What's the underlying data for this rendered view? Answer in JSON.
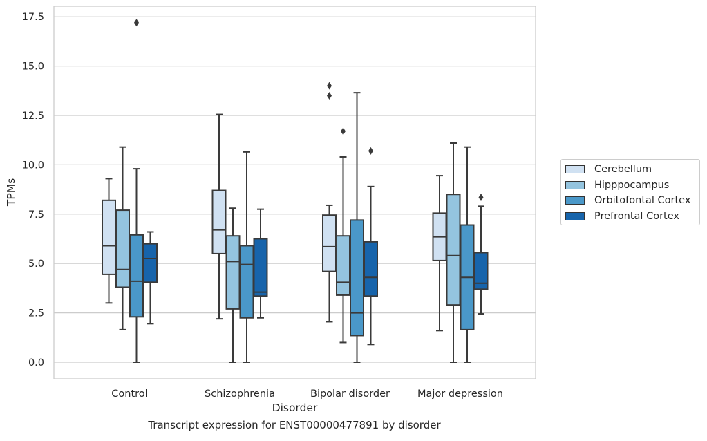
{
  "caption": "Transcript expression for ENST00000477891 by disorder",
  "legend": {
    "items": [
      {
        "label": "Cerebellum",
        "color": "#d0e1f2"
      },
      {
        "label": "Hipppocampus",
        "color": "#94c4df"
      },
      {
        "label": "Orbitofontal Cortex",
        "color": "#4a98c9"
      },
      {
        "label": "Prefrontal Cortex",
        "color": "#1764ab"
      }
    ]
  },
  "chart_data": {
    "type": "box",
    "xlabel": "Disorder",
    "ylabel": "TPMs",
    "ylim": [
      -0.8,
      18.1
    ],
    "yticks": [
      "0.0",
      "2.5",
      "5.0",
      "7.5",
      "10.0",
      "12.5",
      "15.0",
      "17.5"
    ],
    "grid": "horizontal",
    "legend_position": "right",
    "categories": [
      "Control",
      "Schizophrenia",
      "Bipolar disorder",
      "Major depression"
    ],
    "series": [
      {
        "name": "Cerebellum",
        "color": "#d0e1f2",
        "boxes": [
          {
            "min": 3.0,
            "q1": 4.45,
            "median": 5.9,
            "q3": 8.2,
            "max": 9.3,
            "outliers": []
          },
          {
            "min": 2.2,
            "q1": 5.5,
            "median": 6.7,
            "q3": 8.7,
            "max": 12.55,
            "outliers": []
          },
          {
            "min": 2.05,
            "q1": 4.6,
            "median": 5.85,
            "q3": 7.45,
            "max": 7.95,
            "outliers": [
              13.5,
              14.0
            ]
          },
          {
            "min": 1.6,
            "q1": 5.15,
            "median": 6.35,
            "q3": 7.55,
            "max": 9.45,
            "outliers": []
          }
        ]
      },
      {
        "name": "Hipppocampus",
        "color": "#94c4df",
        "boxes": [
          {
            "min": 1.65,
            "q1": 3.8,
            "median": 4.7,
            "q3": 7.7,
            "max": 10.9,
            "outliers": []
          },
          {
            "min": 0.0,
            "q1": 2.7,
            "median": 5.1,
            "q3": 6.4,
            "max": 7.8,
            "outliers": []
          },
          {
            "min": 1.0,
            "q1": 3.4,
            "median": 4.05,
            "q3": 6.4,
            "max": 10.4,
            "outliers": [
              11.7
            ]
          },
          {
            "min": 0.0,
            "q1": 2.9,
            "median": 5.4,
            "q3": 8.5,
            "max": 11.1,
            "outliers": []
          }
        ]
      },
      {
        "name": "Orbitofontal Cortex",
        "color": "#4a98c9",
        "boxes": [
          {
            "min": 0.0,
            "q1": 2.3,
            "median": 4.1,
            "q3": 6.45,
            "max": 9.8,
            "outliers": [
              17.2
            ]
          },
          {
            "min": 0.0,
            "q1": 2.25,
            "median": 4.95,
            "q3": 5.9,
            "max": 10.65,
            "outliers": []
          },
          {
            "min": 0.0,
            "q1": 1.35,
            "median": 2.5,
            "q3": 7.2,
            "max": 13.65,
            "outliers": []
          },
          {
            "min": 0.0,
            "q1": 1.65,
            "median": 4.3,
            "q3": 6.95,
            "max": 10.9,
            "outliers": []
          }
        ]
      },
      {
        "name": "Prefrontal Cortex",
        "color": "#1764ab",
        "boxes": [
          {
            "min": 1.95,
            "q1": 4.05,
            "median": 5.25,
            "q3": 6.0,
            "max": 6.6,
            "outliers": []
          },
          {
            "min": 2.25,
            "q1": 3.35,
            "median": 3.55,
            "q3": 6.25,
            "max": 7.75,
            "outliers": []
          },
          {
            "min": 0.9,
            "q1": 3.35,
            "median": 4.3,
            "q3": 6.1,
            "max": 8.9,
            "outliers": [
              10.7
            ]
          },
          {
            "min": 2.45,
            "q1": 3.7,
            "median": 4.0,
            "q3": 5.55,
            "max": 7.9,
            "outliers": [
              8.35
            ]
          }
        ]
      }
    ]
  }
}
